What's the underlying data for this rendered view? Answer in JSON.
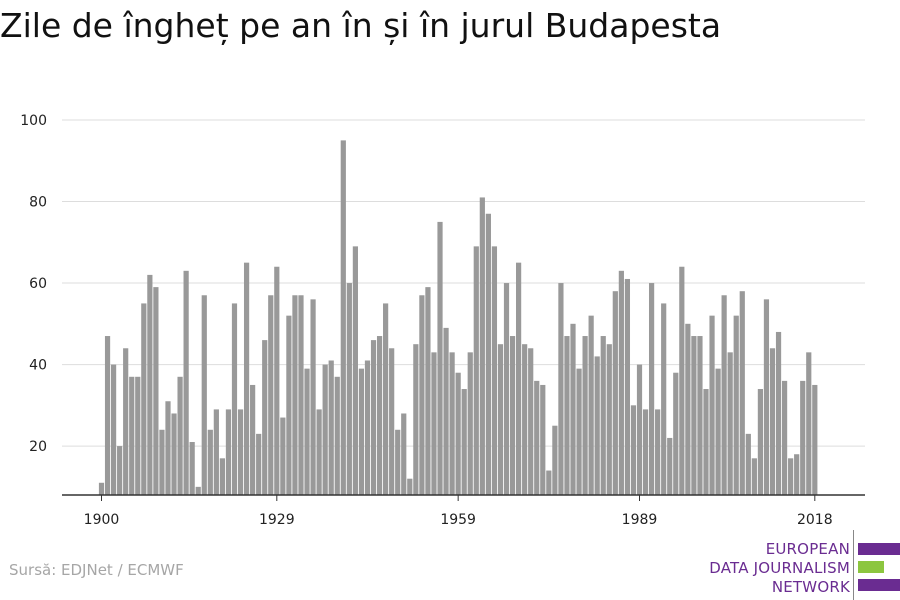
{
  "header": {
    "title": "Zile de îngheț pe an în și în jurul Budapesta"
  },
  "footer": {
    "source": "Sursă: EDJNet / ECMWF"
  },
  "logo": {
    "lines": [
      "EUROPEAN",
      "DATA JOURNALISM",
      "NETWORK"
    ],
    "colors": {
      "primary": "#6a2c91",
      "accent": "#8cc63f"
    }
  },
  "colors": {
    "bar": "#999999",
    "grid": "#dddddd",
    "axis": "#333333"
  },
  "chart_data": {
    "type": "bar",
    "title": "Zile de îngheț pe an în și în jurul Budapesta",
    "xlabel": "",
    "ylabel": "",
    "ylim": [
      8,
      100
    ],
    "yticks": [
      20,
      40,
      60,
      80,
      100
    ],
    "xticks": [
      1900,
      1929,
      1959,
      1989,
      2018
    ],
    "grid": true,
    "x": [
      1900,
      1901,
      1902,
      1903,
      1904,
      1905,
      1906,
      1907,
      1908,
      1909,
      1910,
      1911,
      1912,
      1913,
      1914,
      1915,
      1916,
      1917,
      1918,
      1919,
      1920,
      1921,
      1922,
      1923,
      1924,
      1925,
      1926,
      1927,
      1928,
      1929,
      1930,
      1931,
      1932,
      1933,
      1934,
      1935,
      1936,
      1937,
      1938,
      1939,
      1940,
      1941,
      1942,
      1943,
      1944,
      1945,
      1946,
      1947,
      1948,
      1949,
      1950,
      1951,
      1952,
      1953,
      1954,
      1955,
      1956,
      1957,
      1958,
      1959,
      1960,
      1961,
      1962,
      1963,
      1964,
      1965,
      1966,
      1967,
      1968,
      1969,
      1970,
      1971,
      1972,
      1973,
      1974,
      1975,
      1976,
      1977,
      1978,
      1979,
      1980,
      1981,
      1982,
      1983,
      1984,
      1985,
      1986,
      1987,
      1988,
      1989,
      1990,
      1991,
      1992,
      1993,
      1994,
      1995,
      1996,
      1997,
      1998,
      1999,
      2000,
      2001,
      2002,
      2003,
      2004,
      2005,
      2006,
      2007,
      2008,
      2009,
      2010,
      2011,
      2012,
      2013,
      2014,
      2015,
      2016,
      2017,
      2018
    ],
    "values": [
      11,
      47,
      40,
      20,
      44,
      37,
      37,
      55,
      62,
      59,
      24,
      31,
      28,
      37,
      63,
      21,
      10,
      57,
      24,
      29,
      17,
      29,
      55,
      29,
      65,
      35,
      23,
      46,
      57,
      64,
      27,
      52,
      57,
      57,
      39,
      56,
      29,
      40,
      41,
      37,
      95,
      60,
      69,
      39,
      41,
      46,
      47,
      55,
      44,
      24,
      28,
      12,
      45,
      57,
      59,
      43,
      75,
      49,
      43,
      38,
      34,
      43,
      69,
      81,
      77,
      69,
      45,
      60,
      47,
      65,
      45,
      44,
      36,
      35,
      14,
      25,
      60,
      47,
      50,
      39,
      47,
      52,
      42,
      47,
      45,
      58,
      63,
      61,
      30,
      40,
      29,
      60,
      29,
      55,
      22,
      38,
      64,
      50,
      47,
      47,
      34,
      52,
      39,
      57,
      43,
      52,
      58,
      23,
      17,
      34,
      56,
      44,
      48,
      36,
      17,
      18,
      36,
      43,
      35
    ]
  }
}
